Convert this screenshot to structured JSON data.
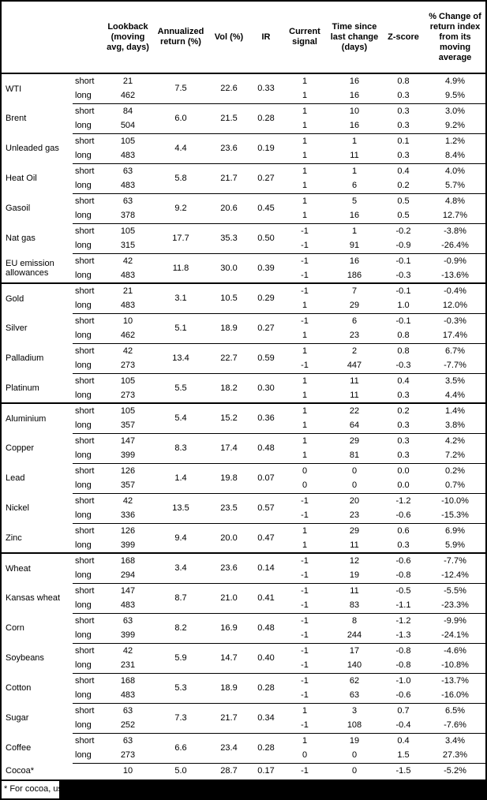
{
  "table": {
    "headers": [
      "",
      "",
      "Lookback\n(moving\navg, days)",
      "Annualized\nreturn (%)",
      "Vol (%)",
      "IR",
      "Current\nsignal",
      "Time since\nlast change\n(days)",
      "Z-score",
      "% Change of\nreturn index\nfrom its\nmoving\naverage"
    ],
    "commodities": [
      {
        "name": "WTI",
        "separator": "none",
        "annualized_return": "7.5",
        "vol": "22.6",
        "ir": "0.33",
        "rows": [
          {
            "leg": "short",
            "lookback": "21",
            "signal": "1",
            "time_since_change": "16",
            "z_score": "0.8",
            "pct_change": "4.9%"
          },
          {
            "leg": "long",
            "lookback": "462",
            "signal": "1",
            "time_since_change": "16",
            "z_score": "0.3",
            "pct_change": "9.5%"
          }
        ]
      },
      {
        "name": "Brent",
        "separator": "thin",
        "annualized_return": "6.0",
        "vol": "21.5",
        "ir": "0.28",
        "rows": [
          {
            "leg": "short",
            "lookback": "84",
            "signal": "1",
            "time_since_change": "10",
            "z_score": "0.3",
            "pct_change": "3.0%"
          },
          {
            "leg": "long",
            "lookback": "504",
            "signal": "1",
            "time_since_change": "16",
            "z_score": "0.3",
            "pct_change": "9.2%"
          }
        ]
      },
      {
        "name": "Unleaded gas",
        "separator": "thin",
        "annualized_return": "4.4",
        "vol": "23.6",
        "ir": "0.19",
        "rows": [
          {
            "leg": "short",
            "lookback": "105",
            "signal": "1",
            "time_since_change": "1",
            "z_score": "0.1",
            "pct_change": "1.2%"
          },
          {
            "leg": "long",
            "lookback": "483",
            "signal": "1",
            "time_since_change": "11",
            "z_score": "0.3",
            "pct_change": "8.4%"
          }
        ]
      },
      {
        "name": "Heat Oil",
        "separator": "thin",
        "annualized_return": "5.8",
        "vol": "21.7",
        "ir": "0.27",
        "rows": [
          {
            "leg": "short",
            "lookback": "63",
            "signal": "1",
            "time_since_change": "1",
            "z_score": "0.4",
            "pct_change": "4.0%"
          },
          {
            "leg": "long",
            "lookback": "483",
            "signal": "1",
            "time_since_change": "6",
            "z_score": "0.2",
            "pct_change": "5.7%"
          }
        ]
      },
      {
        "name": "Gasoil",
        "separator": "thin",
        "annualized_return": "9.2",
        "vol": "20.6",
        "ir": "0.45",
        "rows": [
          {
            "leg": "short",
            "lookback": "63",
            "signal": "1",
            "time_since_change": "5",
            "z_score": "0.5",
            "pct_change": "4.8%"
          },
          {
            "leg": "long",
            "lookback": "378",
            "signal": "1",
            "time_since_change": "16",
            "z_score": "0.5",
            "pct_change": "12.7%"
          }
        ]
      },
      {
        "name": "Nat gas",
        "separator": "thin",
        "annualized_return": "17.7",
        "vol": "35.3",
        "ir": "0.50",
        "rows": [
          {
            "leg": "short",
            "lookback": "105",
            "signal": "-1",
            "time_since_change": "1",
            "z_score": "-0.2",
            "pct_change": "-3.8%"
          },
          {
            "leg": "long",
            "lookback": "315",
            "signal": "-1",
            "time_since_change": "91",
            "z_score": "-0.9",
            "pct_change": "-26.4%"
          }
        ]
      },
      {
        "name": "EU emission allowances",
        "separator": "thin",
        "annualized_return": "11.8",
        "vol": "30.0",
        "ir": "0.39",
        "rows": [
          {
            "leg": "short",
            "lookback": "42",
            "signal": "-1",
            "time_since_change": "16",
            "z_score": "-0.1",
            "pct_change": "-0.9%"
          },
          {
            "leg": "long",
            "lookback": "483",
            "signal": "-1",
            "time_since_change": "186",
            "z_score": "-0.3",
            "pct_change": "-13.6%"
          }
        ]
      },
      {
        "name": "Gold",
        "separator": "thick",
        "annualized_return": "3.1",
        "vol": "10.5",
        "ir": "0.29",
        "rows": [
          {
            "leg": "short",
            "lookback": "21",
            "signal": "-1",
            "time_since_change": "7",
            "z_score": "-0.1",
            "pct_change": "-0.4%"
          },
          {
            "leg": "long",
            "lookback": "483",
            "signal": "1",
            "time_since_change": "29",
            "z_score": "1.0",
            "pct_change": "12.0%"
          }
        ]
      },
      {
        "name": "Silver",
        "separator": "thin",
        "annualized_return": "5.1",
        "vol": "18.9",
        "ir": "0.27",
        "rows": [
          {
            "leg": "short",
            "lookback": "10",
            "signal": "-1",
            "time_since_change": "6",
            "z_score": "-0.1",
            "pct_change": "-0.3%"
          },
          {
            "leg": "long",
            "lookback": "462",
            "signal": "1",
            "time_since_change": "23",
            "z_score": "0.8",
            "pct_change": "17.4%"
          }
        ]
      },
      {
        "name": "Palladium",
        "separator": "thin",
        "annualized_return": "13.4",
        "vol": "22.7",
        "ir": "0.59",
        "rows": [
          {
            "leg": "short",
            "lookback": "42",
            "signal": "1",
            "time_since_change": "2",
            "z_score": "0.8",
            "pct_change": "6.7%"
          },
          {
            "leg": "long",
            "lookback": "273",
            "signal": "-1",
            "time_since_change": "447",
            "z_score": "-0.3",
            "pct_change": "-7.7%"
          }
        ]
      },
      {
        "name": "Platinum",
        "separator": "thin",
        "annualized_return": "5.5",
        "vol": "18.2",
        "ir": "0.30",
        "rows": [
          {
            "leg": "short",
            "lookback": "105",
            "signal": "1",
            "time_since_change": "11",
            "z_score": "0.4",
            "pct_change": "3.5%"
          },
          {
            "leg": "long",
            "lookback": "273",
            "signal": "1",
            "time_since_change": "11",
            "z_score": "0.3",
            "pct_change": "4.4%"
          }
        ]
      },
      {
        "name": "Aluminium",
        "separator": "thick",
        "annualized_return": "5.4",
        "vol": "15.2",
        "ir": "0.36",
        "rows": [
          {
            "leg": "short",
            "lookback": "105",
            "signal": "1",
            "time_since_change": "22",
            "z_score": "0.2",
            "pct_change": "1.4%"
          },
          {
            "leg": "long",
            "lookback": "357",
            "signal": "1",
            "time_since_change": "64",
            "z_score": "0.3",
            "pct_change": "3.8%"
          }
        ]
      },
      {
        "name": "Copper",
        "separator": "thin",
        "annualized_return": "8.3",
        "vol": "17.4",
        "ir": "0.48",
        "rows": [
          {
            "leg": "short",
            "lookback": "147",
            "signal": "1",
            "time_since_change": "29",
            "z_score": "0.3",
            "pct_change": "4.2%"
          },
          {
            "leg": "long",
            "lookback": "399",
            "signal": "1",
            "time_since_change": "81",
            "z_score": "0.3",
            "pct_change": "7.2%"
          }
        ]
      },
      {
        "name": "Lead",
        "separator": "thin",
        "annualized_return": "1.4",
        "vol": "19.8",
        "ir": "0.07",
        "rows": [
          {
            "leg": "short",
            "lookback": "126",
            "signal": "0",
            "time_since_change": "0",
            "z_score": "0.0",
            "pct_change": "0.2%"
          },
          {
            "leg": "long",
            "lookback": "357",
            "signal": "0",
            "time_since_change": "0",
            "z_score": "0.0",
            "pct_change": "0.7%"
          }
        ]
      },
      {
        "name": "Nickel",
        "separator": "thin",
        "annualized_return": "13.5",
        "vol": "23.5",
        "ir": "0.57",
        "rows": [
          {
            "leg": "short",
            "lookback": "42",
            "signal": "-1",
            "time_since_change": "20",
            "z_score": "-1.2",
            "pct_change": "-10.0%"
          },
          {
            "leg": "long",
            "lookback": "336",
            "signal": "-1",
            "time_since_change": "23",
            "z_score": "-0.6",
            "pct_change": "-15.3%"
          }
        ]
      },
      {
        "name": "Zinc",
        "separator": "thin",
        "annualized_return": "9.4",
        "vol": "20.0",
        "ir": "0.47",
        "rows": [
          {
            "leg": "short",
            "lookback": "126",
            "signal": "1",
            "time_since_change": "29",
            "z_score": "0.6",
            "pct_change": "6.9%"
          },
          {
            "leg": "long",
            "lookback": "399",
            "signal": "1",
            "time_since_change": "11",
            "z_score": "0.3",
            "pct_change": "5.9%"
          }
        ]
      },
      {
        "name": "Wheat",
        "separator": "thick",
        "annualized_return": "3.4",
        "vol": "23.6",
        "ir": "0.14",
        "rows": [
          {
            "leg": "short",
            "lookback": "168",
            "signal": "-1",
            "time_since_change": "12",
            "z_score": "-0.6",
            "pct_change": "-7.7%"
          },
          {
            "leg": "long",
            "lookback": "294",
            "signal": "-1",
            "time_since_change": "19",
            "z_score": "-0.8",
            "pct_change": "-12.4%"
          }
        ]
      },
      {
        "name": "Kansas wheat",
        "separator": "thin",
        "annualized_return": "8.7",
        "vol": "21.0",
        "ir": "0.41",
        "rows": [
          {
            "leg": "short",
            "lookback": "147",
            "signal": "-1",
            "time_since_change": "11",
            "z_score": "-0.5",
            "pct_change": "-5.5%"
          },
          {
            "leg": "long",
            "lookback": "483",
            "signal": "-1",
            "time_since_change": "83",
            "z_score": "-1.1",
            "pct_change": "-23.3%"
          }
        ]
      },
      {
        "name": "Corn",
        "separator": "thin",
        "annualized_return": "8.2",
        "vol": "16.9",
        "ir": "0.48",
        "rows": [
          {
            "leg": "short",
            "lookback": "63",
            "signal": "-1",
            "time_since_change": "8",
            "z_score": "-1.2",
            "pct_change": "-9.9%"
          },
          {
            "leg": "long",
            "lookback": "399",
            "signal": "-1",
            "time_since_change": "244",
            "z_score": "-1.3",
            "pct_change": "-24.1%"
          }
        ]
      },
      {
        "name": "Soybeans",
        "separator": "thin",
        "annualized_return": "5.9",
        "vol": "14.7",
        "ir": "0.40",
        "rows": [
          {
            "leg": "short",
            "lookback": "42",
            "signal": "-1",
            "time_since_change": "17",
            "z_score": "-0.8",
            "pct_change": "-4.6%"
          },
          {
            "leg": "long",
            "lookback": "231",
            "signal": "-1",
            "time_since_change": "140",
            "z_score": "-0.8",
            "pct_change": "-10.8%"
          }
        ]
      },
      {
        "name": "Cotton",
        "separator": "thin",
        "annualized_return": "5.3",
        "vol": "18.9",
        "ir": "0.28",
        "rows": [
          {
            "leg": "short",
            "lookback": "168",
            "signal": "-1",
            "time_since_change": "62",
            "z_score": "-1.0",
            "pct_change": "-13.7%"
          },
          {
            "leg": "long",
            "lookback": "483",
            "signal": "-1",
            "time_since_change": "63",
            "z_score": "-0.6",
            "pct_change": "-16.0%"
          }
        ]
      },
      {
        "name": "Sugar",
        "separator": "thin",
        "annualized_return": "7.3",
        "vol": "21.7",
        "ir": "0.34",
        "rows": [
          {
            "leg": "short",
            "lookback": "63",
            "signal": "1",
            "time_since_change": "3",
            "z_score": "0.7",
            "pct_change": "6.5%"
          },
          {
            "leg": "long",
            "lookback": "252",
            "signal": "-1",
            "time_since_change": "108",
            "z_score": "-0.4",
            "pct_change": "-7.6%"
          }
        ]
      },
      {
        "name": "Coffee",
        "separator": "thin",
        "annualized_return": "6.6",
        "vol": "23.4",
        "ir": "0.28",
        "rows": [
          {
            "leg": "short",
            "lookback": "63",
            "signal": "1",
            "time_since_change": "19",
            "z_score": "0.4",
            "pct_change": "3.4%"
          },
          {
            "leg": "long",
            "lookback": "273",
            "signal": "0",
            "time_since_change": "0",
            "z_score": "1.5",
            "pct_change": "27.3%"
          }
        ]
      },
      {
        "name": "Cocoa*",
        "separator": "thin",
        "annualized_return": "5.0",
        "vol": "28.7",
        "ir": "0.17",
        "rows": [
          {
            "leg": "",
            "lookback": "10",
            "signal": "-1",
            "time_since_change": "0",
            "z_score": "-1.5",
            "pct_change": "-5.2%"
          }
        ]
      }
    ]
  },
  "footnote": {
    "visible_text": "* For cocoa, uses c"
  },
  "colors": {
    "text": "#000000",
    "background": "#ffffff",
    "border": "#000000",
    "redaction": "#000000"
  }
}
